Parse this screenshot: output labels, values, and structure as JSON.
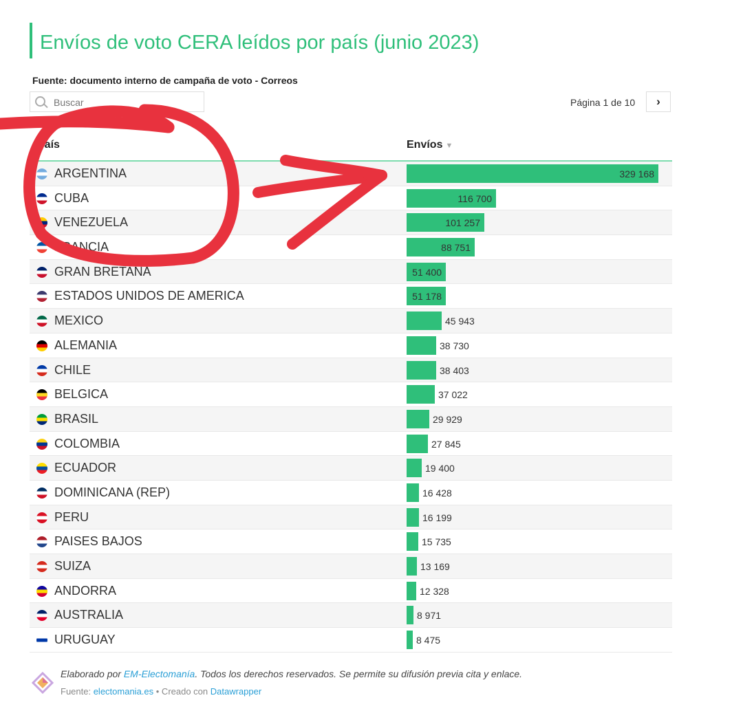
{
  "header": {
    "title": "Envíos de voto CERA leídos por país (junio 2023)",
    "subtitle": "Fuente: documento interno de campaña de voto - Correos"
  },
  "search": {
    "placeholder": "Buscar"
  },
  "pagination": {
    "label": "Página 1 de 10"
  },
  "table": {
    "col_country": "País",
    "col_value": "Envíos"
  },
  "colors": {
    "accent": "#2fbf7a",
    "annotation": "#e8323e"
  },
  "chart_data": {
    "type": "bar",
    "orientation": "horizontal",
    "title": "Envíos de voto CERA leídos por país (junio 2023)",
    "xlim": [
      0,
      329168
    ],
    "categories": [
      "ARGENTINA",
      "CUBA",
      "VENEZUELA",
      "FRANCIA",
      "GRAN BRETAÑA",
      "ESTADOS UNIDOS DE AMERICA",
      "MEXICO",
      "ALEMANIA",
      "CHILE",
      "BELGICA",
      "BRASIL",
      "COLOMBIA",
      "ECUADOR",
      "DOMINICANA (REP)",
      "PERU",
      "PAISES BAJOS",
      "SUIZA",
      "ANDORRA",
      "AUSTRALIA",
      "URUGUAY"
    ],
    "values": [
      329168,
      116700,
      101257,
      88751,
      51400,
      51178,
      45943,
      38730,
      38403,
      37022,
      29929,
      27845,
      19400,
      16428,
      16199,
      15735,
      13169,
      12328,
      8971,
      8475
    ],
    "value_labels": [
      "329 168",
      "116 700",
      "101 257",
      "88 751",
      "51 400",
      "51 178",
      "45 943",
      "38 730",
      "38 403",
      "37 022",
      "29 929",
      "27 845",
      "19 400",
      "16 428",
      "16 199",
      "15 735",
      "13 169",
      "12 328",
      "8 971",
      "8 475"
    ],
    "flag_icons": [
      "argentina-flag-icon",
      "cuba-flag-icon",
      "venezuela-flag-icon",
      "france-flag-icon",
      "uk-flag-icon",
      "usa-flag-icon",
      "mexico-flag-icon",
      "germany-flag-icon",
      "chile-flag-icon",
      "belgium-flag-icon",
      "brazil-flag-icon",
      "colombia-flag-icon",
      "ecuador-flag-icon",
      "dominican-flag-icon",
      "peru-flag-icon",
      "netherlands-flag-icon",
      "switzerland-flag-icon",
      "andorra-flag-icon",
      "australia-flag-icon",
      "uruguay-flag-icon"
    ],
    "flag_colors": [
      [
        "#74acdf",
        "#ffffff",
        "#74acdf"
      ],
      [
        "#002a8f",
        "#ffffff",
        "#cf142b"
      ],
      [
        "#ffcc00",
        "#00247d",
        "#cf142b"
      ],
      [
        "#0055a4",
        "#ffffff",
        "#ef4135"
      ],
      [
        "#012169",
        "#ffffff",
        "#c8102e"
      ],
      [
        "#3c3b6e",
        "#ffffff",
        "#b22234"
      ],
      [
        "#006847",
        "#ffffff",
        "#ce1126"
      ],
      [
        "#000000",
        "#dd0000",
        "#ffce00"
      ],
      [
        "#0039a6",
        "#ffffff",
        "#d52b1e"
      ],
      [
        "#000000",
        "#fdda24",
        "#ef3340"
      ],
      [
        "#009c3b",
        "#ffdf00",
        "#002776"
      ],
      [
        "#fcd116",
        "#003893",
        "#ce1126"
      ],
      [
        "#ffdd00",
        "#034ea2",
        "#ed1c24"
      ],
      [
        "#002d62",
        "#ffffff",
        "#ce1126"
      ],
      [
        "#d91023",
        "#ffffff",
        "#d91023"
      ],
      [
        "#ae1c28",
        "#ffffff",
        "#21468b"
      ],
      [
        "#d52b1e",
        "#ffffff",
        "#d52b1e"
      ],
      [
        "#10069f",
        "#fedd00",
        "#d50032"
      ],
      [
        "#012169",
        "#ffffff",
        "#e4002b"
      ],
      [
        "#ffffff",
        "#0038a8",
        "#ffffff"
      ]
    ]
  },
  "footer": {
    "line1_prefix": "Elaborado por ",
    "line1_author": "EM-Electomanía",
    "line1_suffix": ". Todos los derechos reservados. Se permite su difusión previa cita y enlace.",
    "line2_prefix": "Fuente: ",
    "line2_source": "electomania.es",
    "line2_mid": " • Creado con ",
    "line2_tool": "Datawrapper"
  }
}
